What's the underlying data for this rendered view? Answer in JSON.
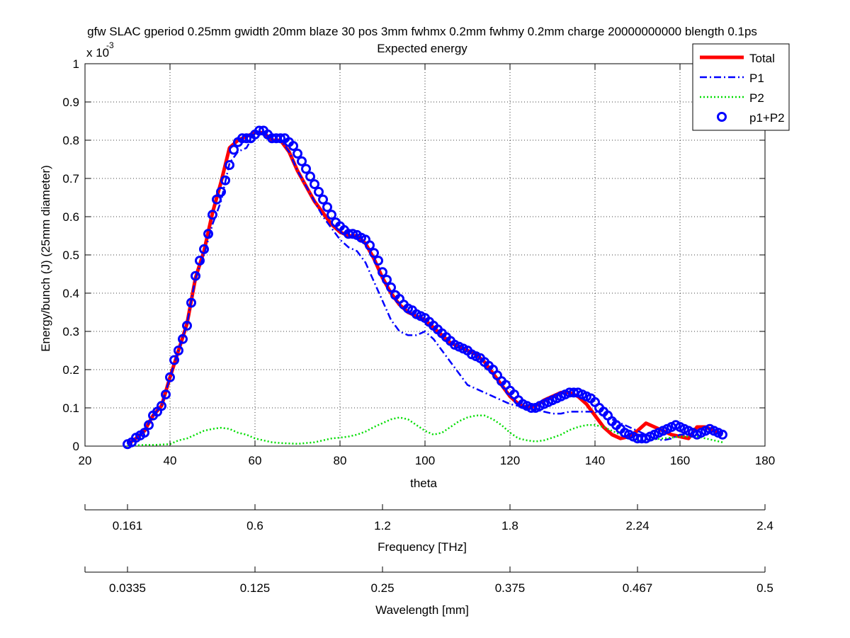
{
  "chart_data": {
    "type": "line",
    "title": "gfw SLAC gperiod 0.25mm gwidth 20mm blaze 30 pos 3mm fwhmx 0.2mm fwhmy 0.2mm charge 20000000000 blength 0.1ps",
    "subtitle": "Expected energy",
    "xlabel": "theta",
    "ylabel": "Energy/bunch (J) (25mm diameter)",
    "y_exponent_label": "x 10",
    "y_exponent": "-3",
    "xlim": [
      20,
      180
    ],
    "ylim": [
      0,
      0.001
    ],
    "grid": true,
    "legend_position": "top-right",
    "x_ticks": [
      "20",
      "40",
      "60",
      "80",
      "100",
      "120",
      "140",
      "160",
      "180"
    ],
    "y_ticks": [
      "0",
      "0.1",
      "0.2",
      "0.3",
      "0.4",
      "0.5",
      "0.6",
      "0.7",
      "0.8",
      "0.9",
      "1"
    ],
    "secondary_axes": [
      {
        "label": "Frequency [THz]",
        "tick_positions_theta": [
          20,
          30,
          60,
          90,
          120,
          150,
          180
        ],
        "tick_labels": [
          "",
          "0.161",
          "0.6",
          "1.2",
          "1.8",
          "2.24",
          "2.4"
        ]
      },
      {
        "label": "Wavelength [mm]",
        "tick_positions_theta": [
          20,
          30,
          60,
          90,
          120,
          150,
          180
        ],
        "tick_labels": [
          "",
          "0.0335",
          "0.125",
          "0.25",
          "0.375",
          "0.467",
          "0.5"
        ]
      }
    ],
    "series": [
      {
        "name": "Total",
        "color": "#ff0000",
        "style": "solid",
        "x": [
          30,
          32,
          34,
          36,
          38,
          40,
          42,
          44,
          46,
          48,
          50,
          52,
          54,
          56,
          58,
          60,
          62,
          64,
          66,
          68,
          70,
          72,
          74,
          76,
          78,
          80,
          82,
          84,
          86,
          88,
          90,
          92,
          94,
          96,
          98,
          100,
          102,
          104,
          106,
          108,
          110,
          112,
          114,
          116,
          118,
          120,
          122,
          124,
          126,
          128,
          130,
          132,
          134,
          136,
          138,
          140,
          142,
          144,
          146,
          148,
          150,
          152,
          154,
          156,
          158,
          160,
          162,
          164,
          166,
          168,
          170
        ],
        "y": [
          5e-06,
          2e-05,
          4e-05,
          8e-05,
          0.000105,
          0.00018,
          0.00025,
          0.00032,
          0.00044,
          0.00051,
          0.00061,
          0.00069,
          0.00078,
          0.0008,
          0.00081,
          0.00082,
          0.00082,
          0.0008,
          0.0008,
          0.00077,
          0.00072,
          0.00068,
          0.00064,
          0.00061,
          0.00058,
          0.00056,
          0.00055,
          0.00055,
          0.00053,
          0.00049,
          0.00044,
          0.0004,
          0.00037,
          0.00035,
          0.00034,
          0.00033,
          0.00031,
          0.00029,
          0.00027,
          0.00026,
          0.00025,
          0.00024,
          0.00022,
          0.00019,
          0.00016,
          0.00013,
          0.00011,
          0.0001,
          0.000105,
          0.00012,
          0.00013,
          0.00014,
          0.00014,
          0.00013,
          0.00011,
          8e-05,
          5e-05,
          3e-05,
          2e-05,
          2.5e-05,
          4e-05,
          6e-05,
          5e-05,
          4e-05,
          3e-05,
          2.5e-05,
          2e-05,
          5e-05,
          5e-05,
          4e-05,
          3e-05
        ]
      },
      {
        "name": "P1",
        "color": "#0000ff",
        "style": "dashdot",
        "x": [
          30,
          32,
          34,
          36,
          38,
          40,
          42,
          44,
          46,
          48,
          50,
          52,
          54,
          56,
          58,
          60,
          62,
          64,
          66,
          68,
          70,
          72,
          74,
          76,
          78,
          80,
          82,
          84,
          86,
          88,
          90,
          92,
          94,
          96,
          98,
          100,
          102,
          104,
          106,
          108,
          110,
          112,
          114,
          116,
          118,
          120,
          122,
          124,
          126,
          128,
          130,
          132,
          134,
          136,
          138,
          140,
          142,
          144,
          146,
          148,
          150,
          152,
          154,
          156,
          158,
          160,
          162,
          164,
          166,
          168,
          170
        ],
        "y": [
          5e-06,
          2e-05,
          4e-05,
          8e-05,
          0.000105,
          0.00018,
          0.00025,
          0.00032,
          0.00044,
          0.0005,
          0.00058,
          0.00064,
          0.00074,
          0.00077,
          0.00078,
          0.00082,
          0.00082,
          0.0008,
          0.0008,
          0.00077,
          0.00072,
          0.00068,
          0.00064,
          0.0006,
          0.00057,
          0.00054,
          0.00052,
          0.00051,
          0.00048,
          0.00043,
          0.00038,
          0.00033,
          0.0003,
          0.00029,
          0.00029,
          0.0003,
          0.00028,
          0.00025,
          0.00022,
          0.00019,
          0.00016,
          0.00015,
          0.00014,
          0.00013,
          0.00012,
          0.00011,
          0.000105,
          0.0001,
          9.5e-05,
          9e-05,
          8.5e-05,
          8.5e-05,
          9e-05,
          9e-05,
          9e-05,
          9e-05,
          8e-05,
          7e-05,
          6e-05,
          5e-05,
          4e-05,
          3e-05,
          2e-05,
          1.5e-05,
          2e-05,
          3e-05,
          3e-05,
          4e-05,
          5e-05,
          4e-05,
          3e-05
        ]
      },
      {
        "name": "P2",
        "color": "#00dd00",
        "style": "dotted",
        "x": [
          30,
          32,
          34,
          36,
          38,
          40,
          42,
          44,
          46,
          48,
          50,
          52,
          54,
          56,
          58,
          60,
          62,
          64,
          66,
          68,
          70,
          72,
          74,
          76,
          78,
          80,
          82,
          84,
          86,
          88,
          90,
          92,
          94,
          96,
          98,
          100,
          102,
          104,
          106,
          108,
          110,
          112,
          114,
          116,
          118,
          120,
          122,
          124,
          126,
          128,
          130,
          132,
          134,
          136,
          138,
          140,
          142,
          144,
          146,
          148,
          150,
          152,
          154,
          156,
          158,
          160,
          162,
          164,
          166,
          168,
          170
        ],
        "y": [
          2e-06,
          2e-06,
          3e-06,
          3e-06,
          4e-06,
          5e-06,
          1.5e-05,
          2e-05,
          3e-05,
          4e-05,
          4.5e-05,
          4.8e-05,
          4.5e-05,
          3.5e-05,
          3e-05,
          2e-05,
          1.5e-05,
          1e-05,
          8e-06,
          7e-06,
          6e-06,
          8e-06,
          1e-05,
          1.5e-05,
          2e-05,
          2.2e-05,
          2.5e-05,
          3e-05,
          3.8e-05,
          5e-05,
          6e-05,
          7e-05,
          7.5e-05,
          7e-05,
          5.5e-05,
          4e-05,
          3e-05,
          3.5e-05,
          5e-05,
          6.5e-05,
          7.5e-05,
          8e-05,
          8e-05,
          7e-05,
          5.5e-05,
          3.5e-05,
          2e-05,
          1.5e-05,
          1.2e-05,
          1.5e-05,
          2.2e-05,
          3e-05,
          4.2e-05,
          5e-05,
          5.5e-05,
          5.5e-05,
          5e-05,
          4e-05,
          3e-05,
          2e-05,
          1.5e-05,
          1.5e-05,
          1.8e-05,
          2e-05,
          2.2e-05,
          2.5e-05,
          2.5e-05,
          2.5e-05,
          2e-05,
          1.5e-05,
          1e-05
        ]
      },
      {
        "name": "p1+P2",
        "color": "#0000ff",
        "style": "circle-markers",
        "x": [
          30,
          31,
          32,
          33,
          34,
          35,
          36,
          37,
          38,
          39,
          40,
          41,
          42,
          43,
          44,
          45,
          46,
          47,
          48,
          49,
          50,
          51,
          52,
          53,
          54,
          55,
          56,
          57,
          58,
          59,
          60,
          61,
          62,
          63,
          64,
          65,
          66,
          67,
          68,
          69,
          70,
          71,
          72,
          73,
          74,
          75,
          76,
          77,
          78,
          79,
          80,
          81,
          82,
          83,
          84,
          85,
          86,
          87,
          88,
          89,
          90,
          91,
          92,
          93,
          94,
          95,
          96,
          97,
          98,
          99,
          100,
          101,
          102,
          103,
          104,
          105,
          106,
          107,
          108,
          109,
          110,
          111,
          112,
          113,
          114,
          115,
          116,
          117,
          118,
          119,
          120,
          121,
          122,
          123,
          124,
          125,
          126,
          127,
          128,
          129,
          130,
          131,
          132,
          133,
          134,
          135,
          136,
          137,
          138,
          139,
          140,
          141,
          142,
          143,
          144,
          145,
          146,
          147,
          148,
          149,
          150,
          151,
          152,
          153,
          154,
          155,
          156,
          157,
          158,
          159,
          160,
          161,
          162,
          163,
          164,
          165,
          166,
          167,
          168,
          169,
          170
        ],
        "y": [
          5e-06,
          1e-05,
          2.2e-05,
          2.8e-05,
          3.5e-05,
          5.5e-05,
          8e-05,
          9e-05,
          0.000105,
          0.000135,
          0.00018,
          0.000225,
          0.00025,
          0.00028,
          0.000315,
          0.000375,
          0.000445,
          0.000485,
          0.000515,
          0.000555,
          0.000605,
          0.000645,
          0.000665,
          0.000695,
          0.000735,
          0.000775,
          0.000795,
          0.000805,
          0.000805,
          0.000805,
          0.000815,
          0.000825,
          0.000825,
          0.000815,
          0.000805,
          0.000805,
          0.000805,
          0.000805,
          0.000795,
          0.000785,
          0.000765,
          0.000745,
          0.000725,
          0.000705,
          0.000685,
          0.000665,
          0.000645,
          0.000625,
          0.000605,
          0.000585,
          0.000575,
          0.000565,
          0.000555,
          0.000555,
          0.000552,
          0.000545,
          0.00054,
          0.000525,
          0.000505,
          0.000485,
          0.000455,
          0.000435,
          0.000415,
          0.000395,
          0.000385,
          0.00037,
          0.00036,
          0.000355,
          0.000345,
          0.00034,
          0.000335,
          0.000325,
          0.000315,
          0.000305,
          0.000295,
          0.000285,
          0.000275,
          0.000265,
          0.00026,
          0.000255,
          0.00025,
          0.00024,
          0.000235,
          0.00023,
          0.00022,
          0.00021,
          0.0002,
          0.000185,
          0.00017,
          0.00016,
          0.000145,
          0.000135,
          0.00012,
          0.00011,
          0.000105,
          0.0001,
          0.0001,
          0.000105,
          0.00011,
          0.000115,
          0.00012,
          0.000125,
          0.00013,
          0.000135,
          0.00014,
          0.00014,
          0.00014,
          0.000135,
          0.00013,
          0.000125,
          0.000115,
          0.0001,
          9e-05,
          8e-05,
          6.5e-05,
          5.5e-05,
          4.5e-05,
          3.5e-05,
          3e-05,
          2.5e-05,
          2e-05,
          2e-05,
          2e-05,
          2.5e-05,
          3e-05,
          3.5e-05,
          4e-05,
          4.5e-05,
          5e-05,
          5.5e-05,
          5e-05,
          4.5e-05,
          4e-05,
          3.5e-05,
          3e-05,
          3.5e-05,
          4e-05,
          4.5e-05,
          4e-05,
          3.5e-05,
          3e-05
        ]
      }
    ]
  }
}
